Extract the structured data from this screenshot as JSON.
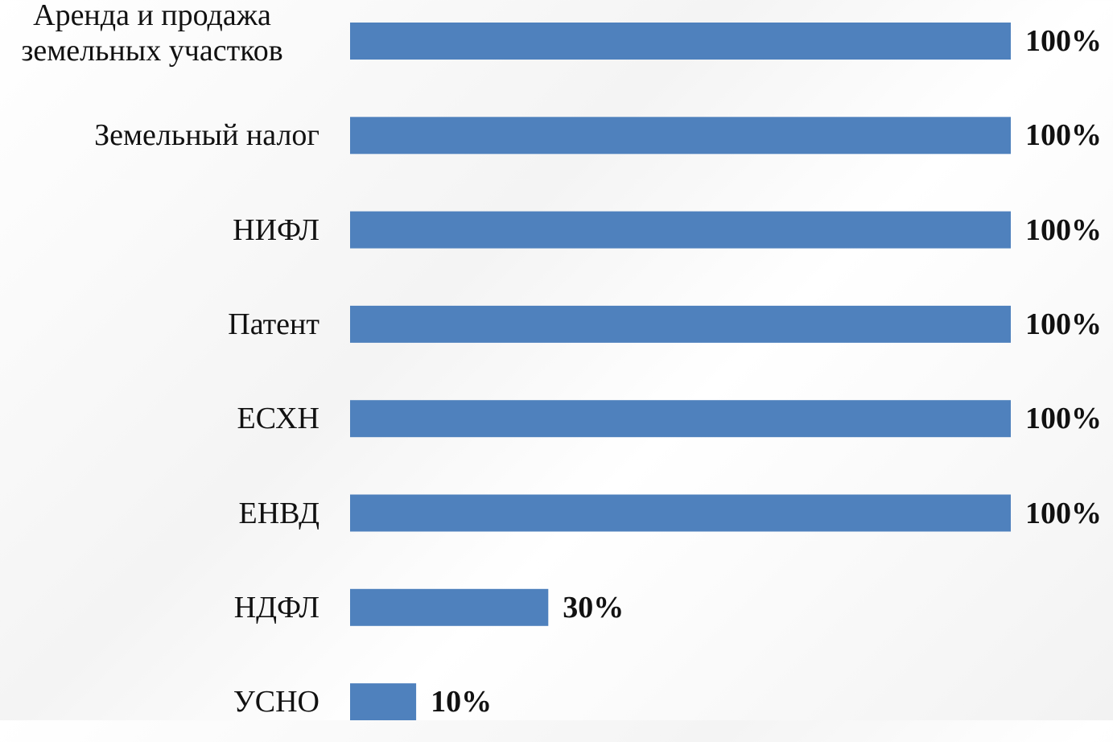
{
  "chart_data": {
    "type": "bar",
    "orientation": "horizontal",
    "categories": [
      "Аренда и продажа земельных участков",
      "Земельный налог",
      "НИФЛ",
      "Патент",
      "ЕСХН",
      "ЕНВД",
      "НДФЛ",
      "УСНО"
    ],
    "values": [
      100,
      100,
      100,
      100,
      100,
      100,
      30,
      10
    ],
    "value_labels": [
      "100%",
      "100%",
      "100%",
      "100%",
      "100%",
      "100%",
      "30%",
      "10%"
    ],
    "color": "#4f81bd",
    "xlim": [
      0,
      100
    ]
  }
}
